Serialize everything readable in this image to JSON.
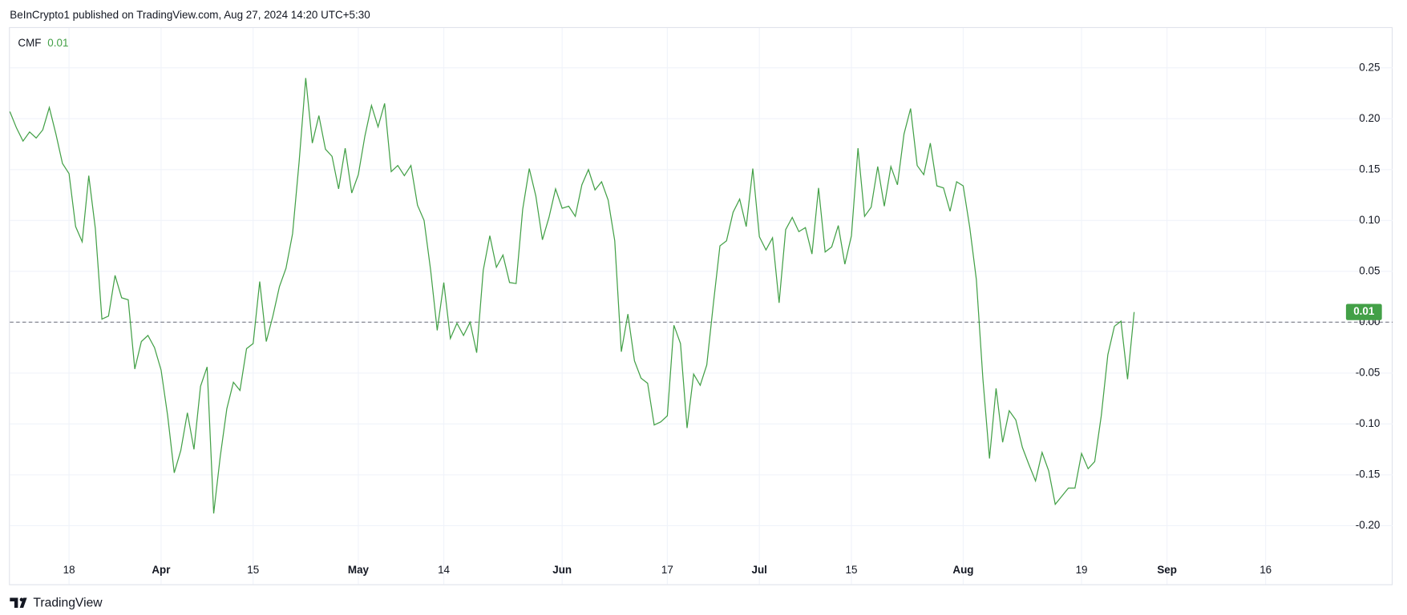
{
  "chart_data": {
    "type": "line",
    "source": "BeInCrypto1 published on TradingView.com, Aug 27, 2024 14:20 UTC+5:30",
    "brand": "TradingView",
    "categories": [
      null,
      null,
      null,
      null,
      null,
      null,
      null,
      null,
      null,
      "18",
      null,
      null,
      null,
      null,
      null,
      null,
      null,
      null,
      null,
      null,
      null,
      null,
      null,
      "Apr",
      null,
      null,
      null,
      null,
      null,
      null,
      null,
      null,
      null,
      null,
      null,
      null,
      null,
      "15",
      null,
      null,
      null,
      null,
      null,
      null,
      null,
      null,
      null,
      null,
      null,
      null,
      null,
      null,
      null,
      "May",
      null,
      null,
      null,
      null,
      null,
      null,
      null,
      null,
      null,
      null,
      null,
      null,
      "14",
      null,
      null,
      null,
      null,
      null,
      null,
      null,
      null,
      null,
      null,
      null,
      null,
      null,
      null,
      null,
      null,
      null,
      "Jun",
      null,
      null,
      null,
      null,
      null,
      null,
      null,
      null,
      null,
      null,
      null,
      null,
      null,
      null,
      null,
      "17",
      null,
      null,
      null,
      null,
      null,
      null,
      null,
      null,
      null,
      null,
      null,
      null,
      null,
      "Jul",
      null,
      null,
      null,
      null,
      null,
      null,
      null,
      null,
      null,
      null,
      null,
      null,
      null,
      "15",
      null,
      null,
      null,
      null,
      null,
      null,
      null,
      null,
      null,
      null,
      null,
      null,
      null,
      null,
      null,
      null,
      "Aug",
      null,
      null,
      null,
      null,
      null,
      null,
      null,
      null,
      null,
      null,
      null,
      null,
      null,
      null,
      null,
      null,
      null,
      "19",
      null,
      null,
      null,
      null,
      null,
      null,
      null,
      null,
      null,
      null,
      null,
      null,
      "Sep",
      null,
      null,
      null,
      null,
      null,
      null,
      null,
      null,
      null,
      null,
      null,
      null,
      null,
      null,
      "16",
      null,
      null,
      null,
      null,
      null,
      null,
      null,
      null,
      null,
      null
    ],
    "series": [
      {
        "name": "CMF",
        "color": "#43a047",
        "values": [
          0.207,
          0.191,
          0.178,
          0.187,
          0.181,
          0.189,
          0.211,
          0.185,
          0.156,
          0.146,
          0.094,
          0.079,
          0.144,
          0.092,
          0.003,
          0.006,
          0.046,
          0.024,
          0.022,
          -0.046,
          -0.019,
          -0.013,
          -0.025,
          -0.047,
          -0.092,
          -0.148,
          -0.126,
          -0.089,
          -0.125,
          -0.063,
          -0.044,
          -0.188,
          -0.132,
          -0.085,
          -0.059,
          -0.067,
          -0.026,
          -0.021,
          0.04,
          -0.019,
          0.006,
          0.035,
          0.053,
          0.087,
          0.158,
          0.24,
          0.176,
          0.203,
          0.17,
          0.163,
          0.131,
          0.171,
          0.127,
          0.145,
          0.183,
          0.213,
          0.192,
          0.215,
          0.148,
          0.154,
          0.144,
          0.154,
          0.115,
          0.1,
          0.051,
          -0.008,
          0.039,
          -0.016,
          -0.001,
          -0.013,
          0,
          -0.03,
          0.051,
          0.085,
          0.054,
          0.066,
          0.039,
          0.038,
          0.111,
          0.151,
          0.124,
          0.081,
          0.103,
          0.131,
          0.112,
          0.114,
          0.104,
          0.135,
          0.15,
          0.13,
          0.138,
          0.12,
          0.08,
          -0.029,
          0.008,
          -0.038,
          -0.055,
          -0.06,
          -0.101,
          -0.098,
          -0.092,
          -0.003,
          -0.021,
          -0.104,
          -0.051,
          -0.062,
          -0.042,
          0.018,
          0.075,
          0.08,
          0.108,
          0.121,
          0.094,
          0.151,
          0.084,
          0.071,
          0.083,
          0.019,
          0.091,
          0.103,
          0.089,
          0.093,
          0.067,
          0.132,
          0.069,
          0.074,
          0.095,
          0.057,
          0.085,
          0.171,
          0.104,
          0.113,
          0.153,
          0.114,
          0.153,
          0.135,
          0.185,
          0.21,
          0.154,
          0.145,
          0.176,
          0.134,
          0.132,
          0.109,
          0.138,
          0.134,
          0.093,
          0.042,
          -0.056,
          -0.134,
          -0.065,
          -0.118,
          -0.087,
          -0.096,
          -0.123,
          -0.14,
          -0.156,
          -0.128,
          -0.146,
          -0.179,
          -0.171,
          -0.163,
          -0.163,
          -0.129,
          -0.144,
          -0.137,
          -0.092,
          -0.032,
          -0.004,
          0.001,
          -0.056,
          0.01,
          null,
          null,
          null,
          null,
          null,
          null,
          null,
          null,
          null,
          null,
          null,
          null,
          null,
          null,
          null,
          null,
          null,
          null,
          null,
          null,
          null,
          null,
          null,
          null,
          null,
          null,
          null,
          null,
          null,
          null
        ]
      }
    ],
    "ylim": [
      -0.23,
      0.29
    ],
    "yticks": [
      0.25,
      {
        "value": 0.2,
        "label": "0.20"
      },
      0.15,
      {
        "value": 0.1,
        "label": "0.10"
      },
      0.05,
      {
        "value": 0,
        "label": "0.00"
      },
      -0.05,
      {
        "value": -0.1,
        "label": "-0.10"
      },
      -0.15,
      {
        "value": -0.2,
        "label": "-0.20"
      }
    ],
    "grid": true
  }
}
